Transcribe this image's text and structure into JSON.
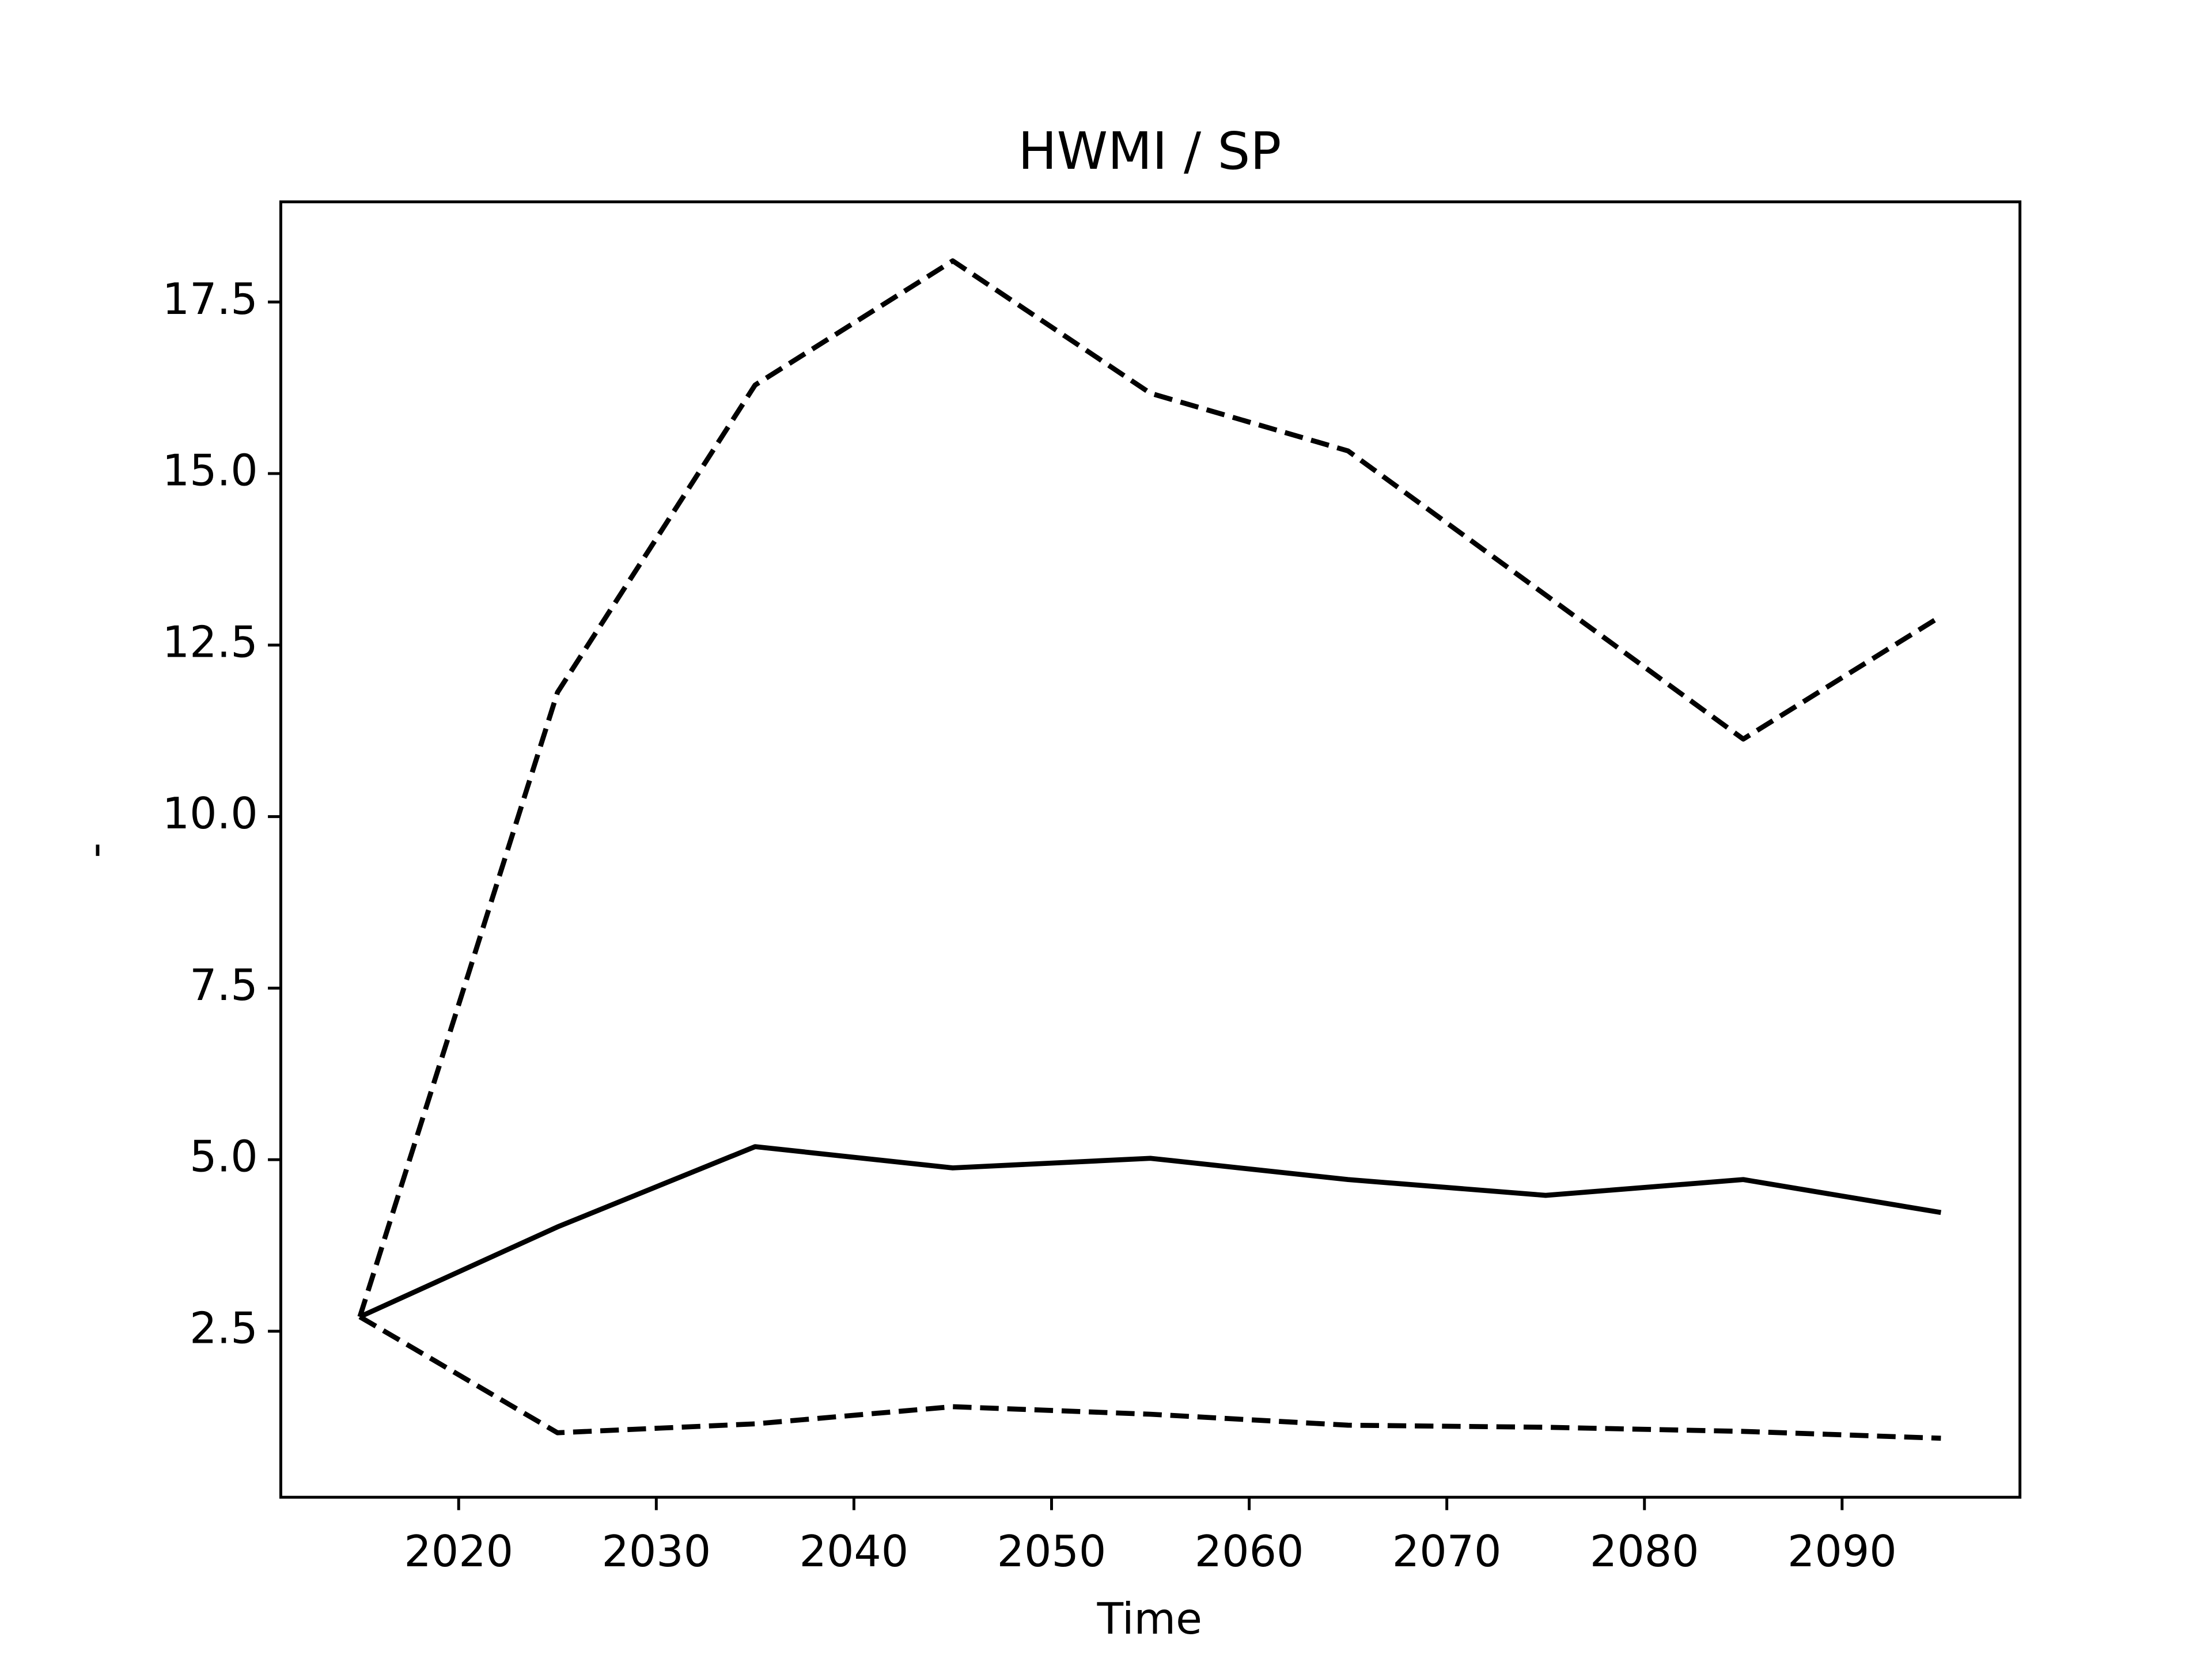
{
  "chart_data": {
    "type": "line",
    "title": "HWMI / SP",
    "xlabel": "Time",
    "ylabel": "-",
    "x": [
      2015,
      2025,
      2035,
      2045,
      2055,
      2065,
      2075,
      2085,
      2095
    ],
    "series": [
      {
        "color": "#000000",
        "linestyle": "solid",
        "values": [
          2.71,
          4.02,
          5.19,
          4.88,
          5.02,
          4.71,
          4.48,
          4.71,
          4.23
        ]
      },
      {
        "color": "#000000",
        "linestyle": "dashed",
        "values": [
          2.71,
          11.81,
          16.29,
          18.1,
          16.17,
          15.33,
          13.23,
          11.13,
          12.92
        ]
      },
      {
        "color": "#000000",
        "linestyle": "dashed",
        "values": [
          2.71,
          1.02,
          1.15,
          1.4,
          1.29,
          1.13,
          1.1,
          1.04,
          0.94
        ]
      }
    ],
    "xlim": [
      2011,
      2099
    ],
    "xticks": [
      2020,
      2030,
      2040,
      2050,
      2060,
      2070,
      2080,
      2090
    ],
    "ylim": [
      0.08,
      18.96
    ],
    "yticks": [
      {
        "value": 2.5,
        "label": "2.5"
      },
      {
        "value": 5,
        "label": "5.0"
      },
      {
        "value": 7.5,
        "label": "7.5"
      },
      {
        "value": 10,
        "label": "10.0"
      },
      {
        "value": 12.5,
        "label": "12.5"
      },
      {
        "value": 15,
        "label": "15.0"
      },
      {
        "value": 17.5,
        "label": "17.5"
      }
    ],
    "grid": false
  }
}
